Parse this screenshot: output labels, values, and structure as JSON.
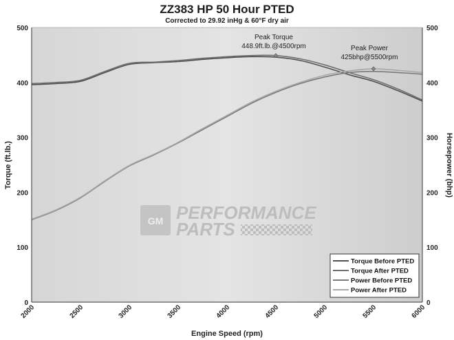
{
  "chart_data": {
    "type": "line",
    "title": "ZZ383 HP 50 Hour PTED",
    "subtitle": "Corrected to 29.92 inHg & 60°F dry air",
    "xlabel": "Engine Speed (rpm)",
    "ylabel_left": "Torque (ft.lb.)",
    "ylabel_right": "Horsepower (bhp)",
    "xlim": [
      2000,
      6000
    ],
    "ylim_left": [
      0,
      500
    ],
    "ylim_right": [
      0,
      500
    ],
    "x_ticks": [
      "2000",
      "2500",
      "3000",
      "3500",
      "4000",
      "4500",
      "5000",
      "5500",
      "6000"
    ],
    "y_ticks_left": [
      "0",
      "100",
      "200",
      "300",
      "400",
      "500"
    ],
    "y_ticks_right": [
      "0",
      "100",
      "200",
      "300",
      "400",
      "500"
    ],
    "grid": false,
    "legend_position": "bottom-right",
    "x": [
      2000,
      2250,
      2500,
      2750,
      3000,
      3250,
      3500,
      3750,
      4000,
      4250,
      4500,
      4750,
      5000,
      5250,
      5500,
      5750,
      6000
    ],
    "series": [
      {
        "name": "Torque Before PTED",
        "axis": "left",
        "color": "#505050",
        "values": [
          396,
          398,
          402,
          418,
          433,
          436,
          438,
          442,
          445,
          447,
          446,
          440,
          428,
          414,
          402,
          385,
          366
        ]
      },
      {
        "name": "Torque After PTED",
        "axis": "left",
        "color": "#6e6e6e",
        "values": [
          398,
          400,
          404,
          420,
          435,
          437,
          440,
          444,
          447,
          449,
          449,
          443,
          432,
          418,
          405,
          388,
          368
        ]
      },
      {
        "name": "Power Before PTED",
        "axis": "right",
        "color": "#7a7a7a",
        "values": [
          150,
          167,
          190,
          220,
          248,
          268,
          290,
          314,
          338,
          362,
          382,
          398,
          410,
          418,
          420,
          418,
          415
        ]
      },
      {
        "name": "Power After PTED",
        "axis": "right",
        "color": "#a8a8a8",
        "values": [
          151,
          168,
          191,
          221,
          249,
          269,
          291,
          316,
          340,
          364,
          384,
          400,
          413,
          421,
          425,
          422,
          418
        ]
      }
    ],
    "annotations": [
      {
        "text_line1": "Peak Torque",
        "text_line2": "448.9ft.lb.@4500rpm",
        "x": 4500,
        "y": 449,
        "axis": "left"
      },
      {
        "text_line1": "Peak Power",
        "text_line2": "425bhp@5500rpm",
        "x": 5500,
        "y": 425,
        "axis": "right"
      }
    ]
  },
  "watermark": {
    "logo": "GM",
    "line1": "PERFORMANCE",
    "line2": "PARTS"
  }
}
